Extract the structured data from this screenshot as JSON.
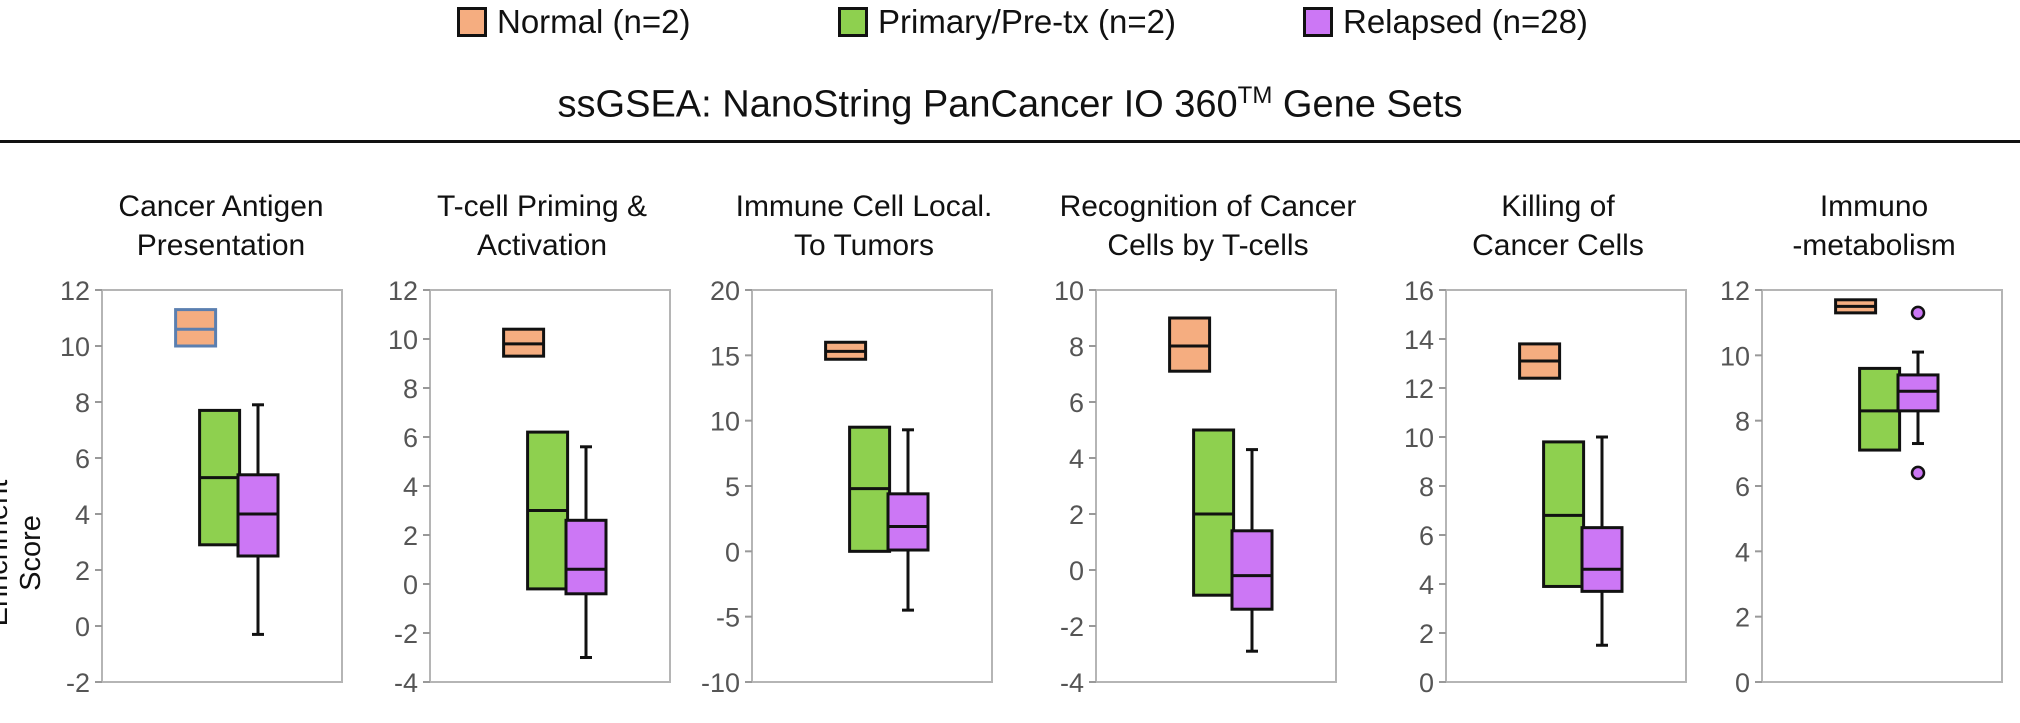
{
  "legend": [
    {
      "label": "Normal (n=2)",
      "color": "#f5ad80"
    },
    {
      "label": "Primary/Pre-tx (n=2)",
      "color": "#8ed04f"
    },
    {
      "label": "Relapsed (n=28)",
      "color": "#cc77f5"
    }
  ],
  "title_main": "ssGSEA: NanoString PanCancer IO 360",
  "title_sup": "TM",
  "title_end": " Gene Sets",
  "ylabel": "Enrichment Score",
  "chart_data": [
    {
      "type": "box",
      "title": [
        "Cancer Antigen",
        "Presentation"
      ],
      "ylim": [
        -2,
        12
      ],
      "ticks": [
        -2,
        0,
        2,
        4,
        6,
        8,
        10,
        12
      ],
      "boxes": [
        {
          "series": "Normal (n=2)",
          "q1": 10.0,
          "median": 10.6,
          "q3": 11.3,
          "whisker_low": null,
          "whisker_high": null,
          "outliers": [],
          "stroke": "#5b7fb0"
        },
        {
          "series": "Primary/Pre-tx (n=2)",
          "q1": 2.9,
          "median": 5.3,
          "q3": 7.7,
          "whisker_low": null,
          "whisker_high": null,
          "outliers": []
        },
        {
          "series": "Relapsed (n=28)",
          "q1": 2.5,
          "median": 4.0,
          "q3": 5.4,
          "whisker_low": -0.3,
          "whisker_high": 7.9,
          "outliers": []
        }
      ]
    },
    {
      "type": "box",
      "title": [
        "T-cell Priming &",
        "Activation"
      ],
      "ylim": [
        -4,
        12
      ],
      "ticks": [
        -4,
        -2,
        0,
        2,
        4,
        6,
        8,
        10,
        12
      ],
      "boxes": [
        {
          "series": "Normal (n=2)",
          "q1": 9.3,
          "median": 9.8,
          "q3": 10.4,
          "whisker_low": null,
          "whisker_high": null,
          "outliers": []
        },
        {
          "series": "Primary/Pre-tx (n=2)",
          "q1": -0.2,
          "median": 3.0,
          "q3": 6.2,
          "whisker_low": null,
          "whisker_high": null,
          "outliers": []
        },
        {
          "series": "Relapsed (n=28)",
          "q1": -0.4,
          "median": 0.6,
          "q3": 2.6,
          "whisker_low": -3.0,
          "whisker_high": 5.6,
          "outliers": []
        }
      ]
    },
    {
      "type": "box",
      "title": [
        "Immune Cell Local.",
        "To Tumors"
      ],
      "ylim": [
        -10,
        20
      ],
      "ticks": [
        -10,
        -5,
        0,
        5,
        10,
        15,
        20
      ],
      "boxes": [
        {
          "series": "Normal (n=2)",
          "q1": 14.7,
          "median": 15.3,
          "q3": 16.0,
          "whisker_low": null,
          "whisker_high": null,
          "outliers": []
        },
        {
          "series": "Primary/Pre-tx (n=2)",
          "q1": 0.0,
          "median": 4.8,
          "q3": 9.5,
          "whisker_low": null,
          "whisker_high": null,
          "outliers": []
        },
        {
          "series": "Relapsed (n=28)",
          "q1": 0.1,
          "median": 1.9,
          "q3": 4.4,
          "whisker_low": -4.5,
          "whisker_high": 9.3,
          "outliers": []
        }
      ]
    },
    {
      "type": "box",
      "title": [
        "Recognition of Cancer",
        "Cells by T-cells"
      ],
      "ylim": [
        -4,
        10
      ],
      "ticks": [
        -4,
        -2,
        0,
        2,
        4,
        6,
        8,
        10
      ],
      "boxes": [
        {
          "series": "Normal (n=2)",
          "q1": 7.1,
          "median": 8.0,
          "q3": 9.0,
          "whisker_low": null,
          "whisker_high": null,
          "outliers": []
        },
        {
          "series": "Primary/Pre-tx (n=2)",
          "q1": -0.9,
          "median": 2.0,
          "q3": 5.0,
          "whisker_low": null,
          "whisker_high": null,
          "outliers": []
        },
        {
          "series": "Relapsed (n=28)",
          "q1": -1.4,
          "median": -0.2,
          "q3": 1.4,
          "whisker_low": -2.9,
          "whisker_high": 4.3,
          "outliers": []
        }
      ]
    },
    {
      "type": "box",
      "title": [
        "Killing of",
        "Cancer Cells"
      ],
      "ylim": [
        0,
        16
      ],
      "ticks": [
        0,
        2,
        4,
        6,
        8,
        10,
        12,
        14,
        16
      ],
      "boxes": [
        {
          "series": "Normal (n=2)",
          "q1": 12.4,
          "median": 13.1,
          "q3": 13.8,
          "whisker_low": null,
          "whisker_high": null,
          "outliers": []
        },
        {
          "series": "Primary/Pre-tx (n=2)",
          "q1": 3.9,
          "median": 6.8,
          "q3": 9.8,
          "whisker_low": null,
          "whisker_high": null,
          "outliers": []
        },
        {
          "series": "Relapsed (n=28)",
          "q1": 3.7,
          "median": 4.6,
          "q3": 6.3,
          "whisker_low": 1.5,
          "whisker_high": 10.0,
          "outliers": []
        }
      ]
    },
    {
      "type": "box",
      "title": [
        "Immuno",
        "-metabolism"
      ],
      "ylim": [
        0,
        12
      ],
      "ticks": [
        0,
        2,
        4,
        6,
        8,
        10,
        12
      ],
      "boxes": [
        {
          "series": "Normal (n=2)",
          "q1": 11.3,
          "median": 11.5,
          "q3": 11.7,
          "whisker_low": null,
          "whisker_high": null,
          "outliers": []
        },
        {
          "series": "Primary/Pre-tx (n=2)",
          "q1": 7.1,
          "median": 8.3,
          "q3": 9.6,
          "whisker_low": null,
          "whisker_high": null,
          "outliers": []
        },
        {
          "series": "Relapsed (n=28)",
          "q1": 8.3,
          "median": 8.9,
          "q3": 9.4,
          "whisker_low": 7.3,
          "whisker_high": 10.1,
          "outliers": [
            11.3,
            6.4
          ]
        }
      ]
    }
  ]
}
